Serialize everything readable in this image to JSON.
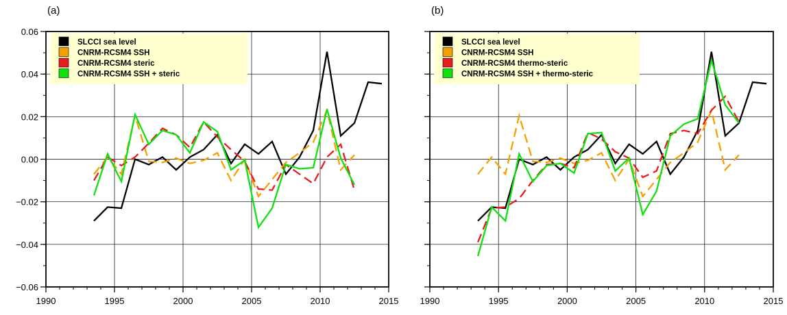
{
  "chart_data": [
    {
      "type": "line",
      "panel_label": "(a)",
      "xlim": [
        1990,
        2015
      ],
      "ylim": [
        -0.06,
        0.06
      ],
      "xticks": [
        "1990",
        "1995",
        "2000",
        "2005",
        "2010",
        "2015"
      ],
      "yticks": [
        "-0.06",
        "-0.04",
        "-0.02",
        "0.00",
        "0.02",
        "0.04",
        "0.06"
      ],
      "grid": true,
      "legend_position": "top-left",
      "x": [
        1993.5,
        1994.5,
        1995.5,
        1996.5,
        1997.5,
        1998.5,
        1999.5,
        2000.5,
        2001.5,
        2002.5,
        2003.5,
        2004.5,
        2005.5,
        2006.5,
        2007.5,
        2008.5,
        2009.5,
        2010.5,
        2011.5,
        2012.5,
        2013.5,
        2014.5
      ],
      "series": [
        {
          "name": "SLCCI sea level",
          "color": "#000000",
          "dash": "solid",
          "values": [
            -0.029,
            -0.0225,
            -0.023,
            0.0,
            -0.0025,
            0.001,
            -0.005,
            0.001,
            0.0045,
            0.0115,
            -0.002,
            0.007,
            0.0025,
            0.0083,
            -0.007,
            0.001,
            0.0135,
            0.0505,
            0.011,
            0.017,
            0.0362,
            0.0355
          ]
        },
        {
          "name": "CNRM-RCSM4 SSH",
          "color": "#f5a000",
          "dash": "dashed",
          "values": [
            -0.007,
            0.001,
            -0.007,
            0.0205,
            -0.001,
            -0.0015,
            0.0005,
            -0.002,
            -0.0005,
            0.003,
            -0.01,
            0.0,
            -0.0175,
            -0.0095,
            -0.0015,
            0.003,
            0.008,
            0.023,
            -0.005,
            0.002,
            null,
            null
          ]
        },
        {
          "name": "CNRM-RCSM4 steric",
          "color": "#e81c1c",
          "dash": "dashed",
          "values": [
            -0.01,
            0.001,
            -0.003,
            0.001,
            0.0075,
            0.0145,
            0.0115,
            0.0055,
            0.0175,
            0.0105,
            0.0045,
            -0.001,
            -0.014,
            -0.0145,
            -0.0025,
            -0.007,
            -0.0115,
            0.001,
            0.007,
            -0.0145,
            null,
            null
          ]
        },
        {
          "name": "CNRM-RCSM4 SSH + steric",
          "color": "#10e010",
          "dash": "solid",
          "values": [
            -0.017,
            0.0025,
            -0.0105,
            0.021,
            0.007,
            0.0135,
            0.0115,
            0.003,
            0.0175,
            0.013,
            -0.005,
            -0.0005,
            -0.032,
            -0.023,
            -0.0025,
            -0.0045,
            -0.004,
            0.0235,
            0.0005,
            -0.012,
            null,
            null
          ]
        }
      ]
    },
    {
      "type": "line",
      "panel_label": "(b)",
      "xlim": [
        1990,
        2015
      ],
      "ylim": [
        -0.06,
        0.06
      ],
      "xticks": [
        "1990",
        "1995",
        "2000",
        "2005",
        "2010",
        "2015"
      ],
      "yticks": [
        "-0.06",
        "-0.04",
        "-0.02",
        "0.00",
        "0.02",
        "0.04",
        "0.06"
      ],
      "grid": true,
      "legend_position": "top-left",
      "x": [
        1993.5,
        1994.5,
        1995.5,
        1996.5,
        1997.5,
        1998.5,
        1999.5,
        2000.5,
        2001.5,
        2002.5,
        2003.5,
        2004.5,
        2005.5,
        2006.5,
        2007.5,
        2008.5,
        2009.5,
        2010.5,
        2011.5,
        2012.5,
        2013.5,
        2014.5
      ],
      "series": [
        {
          "name": "SLCCI sea level",
          "color": "#000000",
          "dash": "solid",
          "values": [
            -0.029,
            -0.0225,
            -0.023,
            0.0,
            -0.0025,
            0.001,
            -0.005,
            0.001,
            0.0045,
            0.0115,
            -0.002,
            0.007,
            0.0025,
            0.0083,
            -0.007,
            0.001,
            0.0135,
            0.0505,
            0.011,
            0.017,
            0.0362,
            0.0355
          ]
        },
        {
          "name": "CNRM-RCSM4 SSH",
          "color": "#f5a000",
          "dash": "dashed",
          "values": [
            -0.007,
            0.001,
            -0.007,
            0.0205,
            -0.001,
            -0.0015,
            0.0005,
            -0.002,
            -0.0005,
            0.003,
            -0.01,
            0.0,
            -0.0175,
            -0.0095,
            -0.0015,
            0.003,
            0.008,
            0.023,
            -0.005,
            0.002,
            null,
            null
          ]
        },
        {
          "name": "CNRM-RCSM4 thermo-steric",
          "color": "#e81c1c",
          "dash": "dashed",
          "values": [
            -0.039,
            -0.023,
            -0.0225,
            -0.0185,
            -0.01,
            -0.0025,
            -0.002,
            -0.004,
            0.0125,
            0.0095,
            0.0035,
            0.0005,
            -0.0085,
            -0.0055,
            0.012,
            0.0135,
            0.012,
            0.023,
            0.0295,
            0.0175,
            null,
            null
          ]
        },
        {
          "name": "CNRM-RCSM4 SSH + thermo-steric",
          "color": "#10e010",
          "dash": "solid",
          "values": [
            -0.0455,
            -0.0225,
            -0.029,
            0.0025,
            -0.0105,
            -0.003,
            -0.002,
            -0.0065,
            0.012,
            0.0125,
            -0.0055,
            0.0005,
            -0.026,
            -0.015,
            0.011,
            0.0165,
            0.019,
            0.0465,
            0.0255,
            0.017,
            null,
            null
          ]
        }
      ]
    }
  ]
}
